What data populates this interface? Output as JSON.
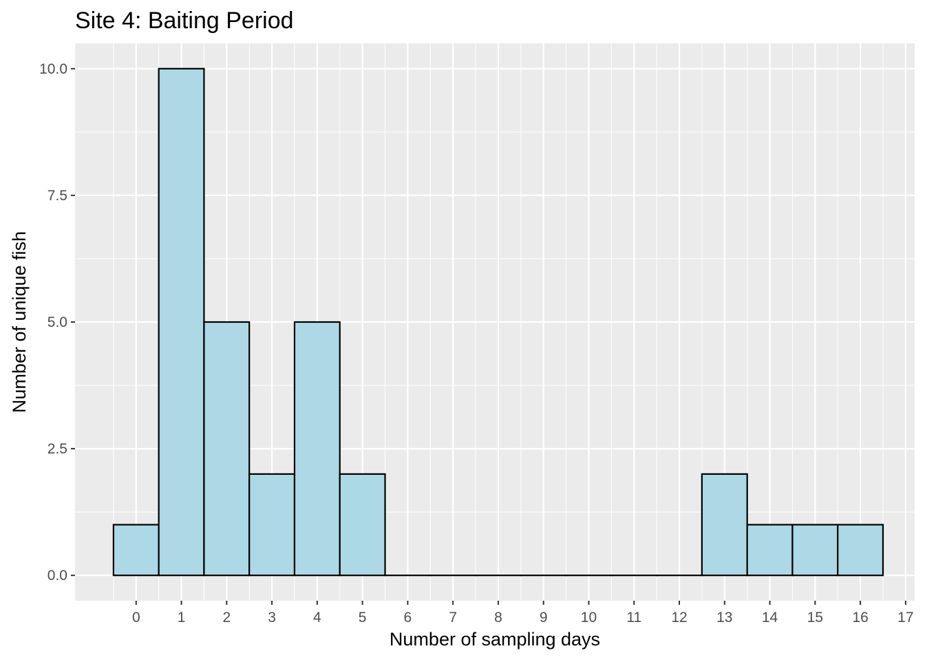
{
  "chart_data": {
    "type": "bar",
    "title": "Site 4: Baiting Period",
    "xlabel": "Number of sampling days",
    "ylabel": "Number of unique fish",
    "x": [
      0,
      1,
      2,
      3,
      4,
      5,
      6,
      7,
      8,
      9,
      10,
      11,
      12,
      13,
      14,
      15,
      16
    ],
    "values": [
      1,
      10,
      5,
      2,
      5,
      2,
      0,
      0,
      0,
      0,
      0,
      0,
      0,
      2,
      1,
      1,
      1
    ],
    "xlim": [
      -1.35,
      17.2
    ],
    "ylim": [
      -0.5,
      10.5
    ],
    "x_ticks": [
      "0",
      "1",
      "2",
      "3",
      "4",
      "5",
      "6",
      "7",
      "8",
      "9",
      "10",
      "11",
      "12",
      "13",
      "14",
      "15",
      "16",
      "17"
    ],
    "y_ticks": [
      "0.0",
      "2.5",
      "5.0",
      "7.5",
      "10.0"
    ],
    "bar_fill": "#add8e6",
    "bar_stroke": "#000000",
    "panel_background": "#ebebeb",
    "grid": true,
    "grid_color": "#ffffff",
    "legend": "none"
  }
}
